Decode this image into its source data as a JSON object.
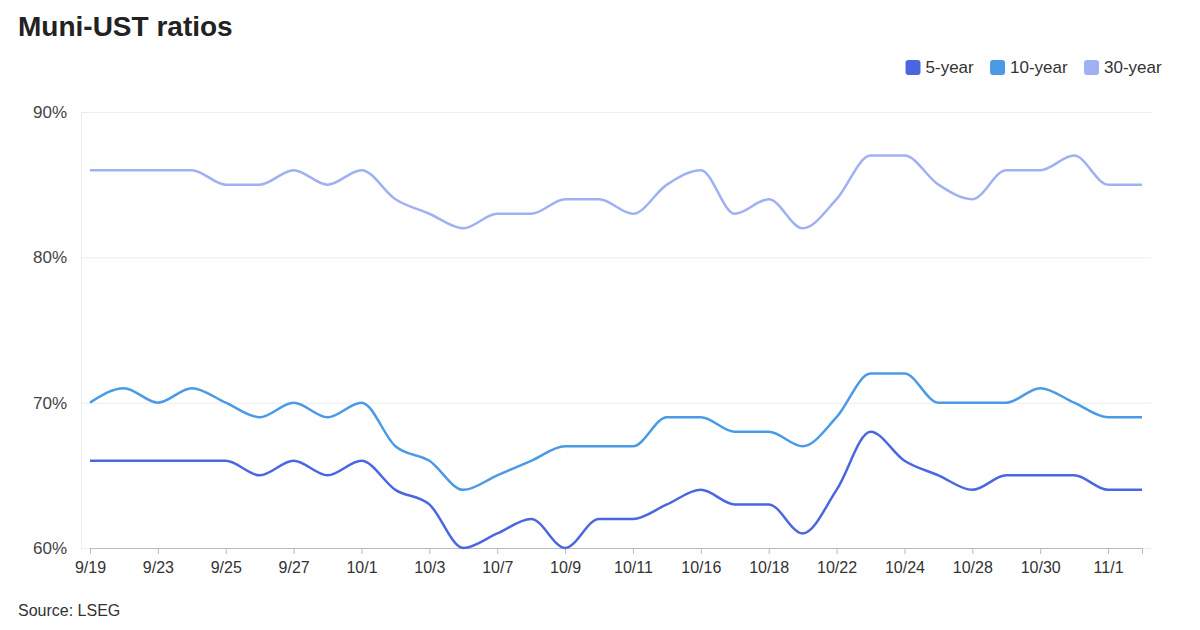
{
  "chart_data": {
    "type": "line",
    "title": "Muni-UST ratios",
    "source": "Source: LSEG",
    "categories": [
      "9/19",
      null,
      "9/23",
      null,
      "9/25",
      null,
      "9/27",
      null,
      "10/1",
      null,
      "10/3",
      null,
      "10/7",
      null,
      "10/9",
      null,
      "10/11",
      null,
      "10/16",
      null,
      "10/18",
      null,
      "10/22",
      null,
      "10/24",
      null,
      "10/28",
      null,
      "10/30",
      null,
      "11/1",
      null
    ],
    "series": [
      {
        "name": "5-year",
        "color": "#4b67e0",
        "values": [
          66,
          66,
          66,
          66,
          66,
          65,
          66,
          65,
          66,
          64,
          63,
          60,
          61,
          62,
          60,
          62,
          62,
          63,
          64,
          63,
          63,
          61,
          64,
          68,
          66,
          65,
          64,
          65,
          65,
          65,
          64,
          64
        ]
      },
      {
        "name": "10-year",
        "color": "#4a9ae6",
        "values": [
          70,
          71,
          70,
          71,
          70,
          69,
          70,
          69,
          70,
          67,
          66,
          64,
          65,
          66,
          67,
          67,
          67,
          69,
          69,
          68,
          68,
          67,
          69,
          72,
          72,
          70,
          70,
          70,
          71,
          70,
          69,
          69
        ]
      },
      {
        "name": "30-year",
        "color": "#a0b1f2",
        "values": [
          86,
          86,
          86,
          86,
          85,
          85,
          86,
          85,
          86,
          84,
          83,
          82,
          83,
          83,
          84,
          84,
          83,
          85,
          86,
          83,
          84,
          82,
          84,
          87,
          87,
          85,
          84,
          86,
          86,
          87,
          85,
          85
        ]
      }
    ],
    "ylim": [
      60,
      90
    ],
    "yticks": [
      {
        "value": 60,
        "label": "60%"
      },
      {
        "value": 70,
        "label": "70%"
      },
      {
        "value": 80,
        "label": "80%"
      },
      {
        "value": 90,
        "label": "90%"
      }
    ],
    "grid": true,
    "legend": "top-right"
  }
}
